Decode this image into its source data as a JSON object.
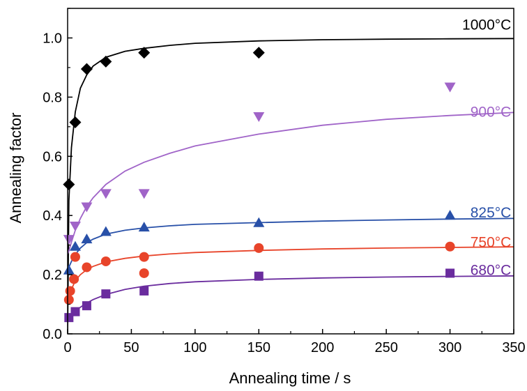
{
  "chart_data": {
    "type": "scatter",
    "xlabel": "Annealing time / s",
    "ylabel": "Annealing factor",
    "xlim": [
      0,
      350
    ],
    "ylim": [
      0,
      1.1
    ],
    "x_ticks": [
      0,
      50,
      100,
      150,
      200,
      250,
      300,
      350
    ],
    "y_ticks": [
      0.0,
      0.2,
      0.4,
      0.6,
      0.8,
      1.0
    ],
    "x_tick_labels": [
      "0",
      "50",
      "100",
      "150",
      "200",
      "250",
      "300",
      "350"
    ],
    "y_tick_labels": [
      "0.0",
      "0.2",
      "0.4",
      "0.6",
      "0.8",
      "1.0"
    ],
    "grid": false,
    "series": [
      {
        "name": "1000°C",
        "color": "#000000",
        "marker": "diamond",
        "points": [
          [
            1,
            0.505
          ],
          [
            6,
            0.715
          ],
          [
            15,
            0.895
          ],
          [
            30,
            0.92
          ],
          [
            60,
            0.95
          ],
          [
            150,
            0.95
          ]
        ],
        "fit": [
          [
            0,
            0
          ],
          [
            1,
            0.45
          ],
          [
            3,
            0.63
          ],
          [
            6,
            0.75
          ],
          [
            10,
            0.83
          ],
          [
            15,
            0.875
          ],
          [
            20,
            0.905
          ],
          [
            30,
            0.935
          ],
          [
            45,
            0.955
          ],
          [
            60,
            0.965
          ],
          [
            80,
            0.975
          ],
          [
            100,
            0.982
          ],
          [
            150,
            0.99
          ],
          [
            200,
            0.994
          ],
          [
            250,
            0.996
          ],
          [
            300,
            0.997
          ],
          [
            350,
            0.998
          ]
        ]
      },
      {
        "name": "900°C",
        "color": "#a064c8",
        "marker": "triangle-down",
        "points": [
          [
            1,
            0.32
          ],
          [
            6,
            0.365
          ],
          [
            15,
            0.43
          ],
          [
            30,
            0.475
          ],
          [
            60,
            0.475
          ],
          [
            150,
            0.735
          ],
          [
            300,
            0.835
          ]
        ],
        "fit": [
          [
            0,
            0.27
          ],
          [
            1,
            0.28
          ],
          [
            3,
            0.31
          ],
          [
            6,
            0.35
          ],
          [
            10,
            0.39
          ],
          [
            15,
            0.43
          ],
          [
            20,
            0.46
          ],
          [
            30,
            0.505
          ],
          [
            45,
            0.55
          ],
          [
            60,
            0.58
          ],
          [
            80,
            0.61
          ],
          [
            100,
            0.635
          ],
          [
            150,
            0.675
          ],
          [
            200,
            0.705
          ],
          [
            250,
            0.725
          ],
          [
            300,
            0.738
          ],
          [
            350,
            0.748
          ]
        ]
      },
      {
        "name": "825°C",
        "color": "#2850a8",
        "marker": "triangle-up",
        "points": [
          [
            1,
            0.215
          ],
          [
            6,
            0.295
          ],
          [
            15,
            0.32
          ],
          [
            30,
            0.345
          ],
          [
            60,
            0.36
          ],
          [
            150,
            0.375
          ],
          [
            300,
            0.4
          ]
        ],
        "fit": [
          [
            0,
            0.215
          ],
          [
            1,
            0.225
          ],
          [
            3,
            0.245
          ],
          [
            6,
            0.268
          ],
          [
            10,
            0.29
          ],
          [
            15,
            0.308
          ],
          [
            20,
            0.32
          ],
          [
            30,
            0.337
          ],
          [
            45,
            0.35
          ],
          [
            60,
            0.358
          ],
          [
            80,
            0.365
          ],
          [
            100,
            0.37
          ],
          [
            150,
            0.376
          ],
          [
            200,
            0.381
          ],
          [
            250,
            0.385
          ],
          [
            300,
            0.388
          ],
          [
            350,
            0.39
          ]
        ]
      },
      {
        "name": "750°C",
        "color": "#e8442a",
        "marker": "circle",
        "points": [
          [
            1,
            0.115
          ],
          [
            2,
            0.145
          ],
          [
            5,
            0.185
          ],
          [
            6,
            0.26
          ],
          [
            15,
            0.225
          ],
          [
            30,
            0.245
          ],
          [
            60,
            0.26
          ],
          [
            60,
            0.205
          ],
          [
            150,
            0.29
          ],
          [
            300,
            0.295
          ]
        ],
        "fit": [
          [
            0,
            0.1
          ],
          [
            1,
            0.12
          ],
          [
            3,
            0.15
          ],
          [
            6,
            0.18
          ],
          [
            10,
            0.2
          ],
          [
            15,
            0.217
          ],
          [
            20,
            0.228
          ],
          [
            30,
            0.243
          ],
          [
            45,
            0.255
          ],
          [
            60,
            0.263
          ],
          [
            80,
            0.27
          ],
          [
            100,
            0.275
          ],
          [
            150,
            0.282
          ],
          [
            200,
            0.287
          ],
          [
            250,
            0.29
          ],
          [
            300,
            0.292
          ],
          [
            350,
            0.294
          ]
        ]
      },
      {
        "name": "680°C",
        "color": "#6a2c9e",
        "marker": "square",
        "points": [
          [
            1,
            0.055
          ],
          [
            6,
            0.075
          ],
          [
            15,
            0.095
          ],
          [
            30,
            0.135
          ],
          [
            60,
            0.145
          ],
          [
            150,
            0.195
          ],
          [
            300,
            0.205
          ]
        ],
        "fit": [
          [
            0,
            0.05
          ],
          [
            1,
            0.055
          ],
          [
            3,
            0.064
          ],
          [
            6,
            0.076
          ],
          [
            10,
            0.09
          ],
          [
            15,
            0.104
          ],
          [
            20,
            0.116
          ],
          [
            30,
            0.133
          ],
          [
            45,
            0.15
          ],
          [
            60,
            0.161
          ],
          [
            80,
            0.17
          ],
          [
            100,
            0.176
          ],
          [
            150,
            0.184
          ],
          [
            200,
            0.189
          ],
          [
            250,
            0.192
          ],
          [
            300,
            0.194
          ],
          [
            350,
            0.196
          ]
        ]
      }
    ],
    "series_label_positions": [
      {
        "series": "1000°C",
        "x": 348,
        "y": 1.045
      },
      {
        "series": "900°C",
        "x": 348,
        "y": 0.75
      },
      {
        "series": "825°C",
        "x": 348,
        "y": 0.41
      },
      {
        "series": "750°C",
        "x": 348,
        "y": 0.31
      },
      {
        "series": "680°C",
        "x": 348,
        "y": 0.215
      }
    ]
  }
}
